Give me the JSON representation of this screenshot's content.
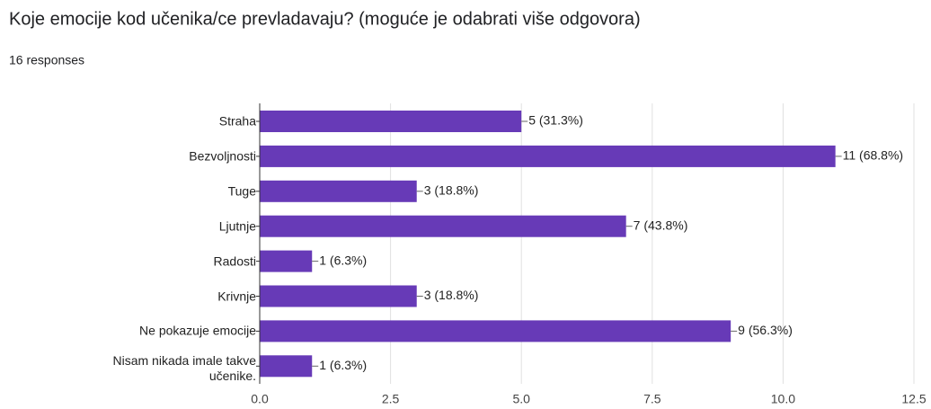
{
  "chart_data": {
    "type": "bar",
    "orientation": "horizontal",
    "title": "Koje emocije kod učenika/ce prevladavaju? (moguće je odabrati više odgovora)",
    "subtitle": "16 responses",
    "categories": [
      "Straha",
      "Bezvoljnosti",
      "Tuge",
      "Ljutnje",
      "Radosti",
      "Krivnje",
      "Ne pokazuje emocije",
      "Nisam nikada imale takve učenike."
    ],
    "values": [
      5,
      11,
      3,
      7,
      1,
      3,
      9,
      1
    ],
    "value_labels": [
      "5 (31.3%)",
      "11 (68.8%)",
      "3 (18.8%)",
      "7 (43.8%)",
      "1 (6.3%)",
      "3 (18.8%)",
      "9 (56.3%)",
      "1 (6.3%)"
    ],
    "color": "#673ab7",
    "xlim": [
      0,
      12.5
    ],
    "xticks": [
      {
        "value": 0,
        "label": "0.0"
      },
      2.5,
      {
        "value": 5,
        "label": "5.0"
      },
      7.5,
      {
        "value": 10,
        "label": "10.0"
      },
      12.5
    ],
    "grid": true
  }
}
